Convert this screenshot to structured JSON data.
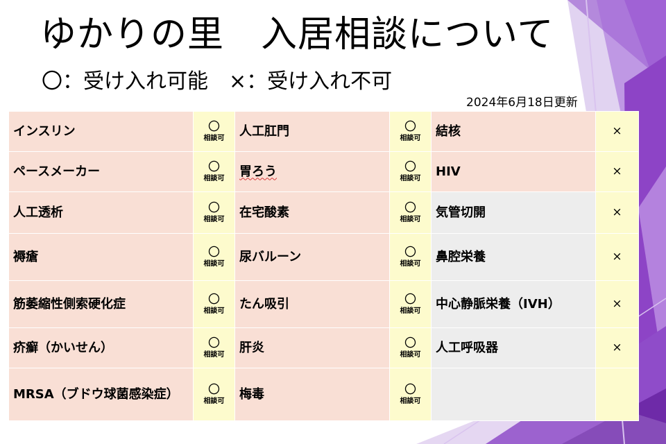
{
  "title": "ゆかりの里　入居相談について",
  "legend": "〇：受け入れ可能　×：受け入れ不可",
  "updated": "2024年6月18日更新",
  "colors": {
    "item_bg": "#f9dfd5",
    "item_bg_gray": "#ededed",
    "mark_bg": "#fdfbcd",
    "accent_purple": "#8e48c4"
  },
  "table": {
    "rows": [
      {
        "col1": {
          "label": "インスリン",
          "mark": "〇",
          "note": "相談可"
        },
        "col2": {
          "label": "人工肛門",
          "mark": "〇",
          "note": "相談可"
        },
        "col3": {
          "label": "結核",
          "mark": "×"
        }
      },
      {
        "col1": {
          "label": "ペースメーカー",
          "mark": "〇",
          "note": "相談可"
        },
        "col2": {
          "label": "胃ろう",
          "mark": "〇",
          "note": "相談可"
        },
        "col3": {
          "label": "HIV",
          "mark": "×"
        }
      },
      {
        "col1": {
          "label": "人工透析",
          "mark": "〇",
          "note": "相談可"
        },
        "col2": {
          "label": "在宅酸素",
          "mark": "〇",
          "note": "相談可"
        },
        "col3": {
          "label": "気管切開",
          "mark": "×"
        }
      },
      {
        "col1": {
          "label": "褥瘡",
          "mark": "〇",
          "note": "相談可"
        },
        "col2": {
          "label": "尿バルーン",
          "mark": "〇",
          "note": "相談可"
        },
        "col3": {
          "label": "鼻腔栄養",
          "mark": "×"
        }
      },
      {
        "col1": {
          "label": "筋萎縮性側索硬化症",
          "mark": "〇",
          "note": "相談可"
        },
        "col2": {
          "label": "たん吸引",
          "mark": "〇",
          "note": "相談可"
        },
        "col3": {
          "label": "中心静脈栄養（IVH）",
          "mark": "×"
        }
      },
      {
        "col1": {
          "label": "疥癬（かいせん）",
          "mark": "〇",
          "note": "相談可"
        },
        "col2": {
          "label": "肝炎",
          "mark": "〇",
          "note": "相談可"
        },
        "col3": {
          "label": "人工呼吸器",
          "mark": "×"
        }
      },
      {
        "col1": {
          "label": "MRSA（ブドウ球菌感染症）",
          "mark": "〇",
          "note": "相談可"
        },
        "col2": {
          "label": "梅毒",
          "mark": "〇",
          "note": "相談可"
        },
        "col3": {
          "label": "",
          "mark": ""
        }
      }
    ]
  }
}
